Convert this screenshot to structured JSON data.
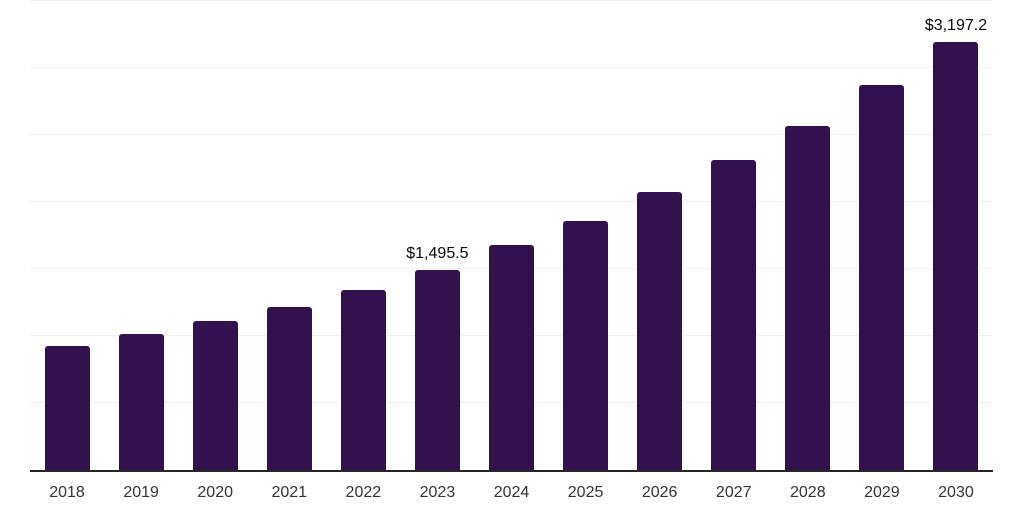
{
  "chart_data": {
    "type": "bar",
    "title": "",
    "xlabel": "",
    "ylabel": "",
    "categories": [
      "2018",
      "2019",
      "2020",
      "2021",
      "2022",
      "2023",
      "2024",
      "2025",
      "2026",
      "2027",
      "2028",
      "2029",
      "2030"
    ],
    "values": [
      925,
      1015,
      1110,
      1215,
      1345,
      1495.5,
      1680,
      1860,
      2075,
      2315,
      2570,
      2875,
      3197.2
    ],
    "data_labels": {
      "2023": "$1,495.5",
      "2030": "$3,197.2"
    },
    "ylim": [
      0,
      3500
    ],
    "gridline_step": 500,
    "grid": true,
    "y_tick_labels_visible": false,
    "legend": false,
    "colors": {
      "bar": "#33114e",
      "axis_line": "#262626",
      "gridline": "#f0f0f0",
      "tick_label": "#333333",
      "data_label": "#0a0a0a",
      "background": "#ffffff"
    }
  }
}
